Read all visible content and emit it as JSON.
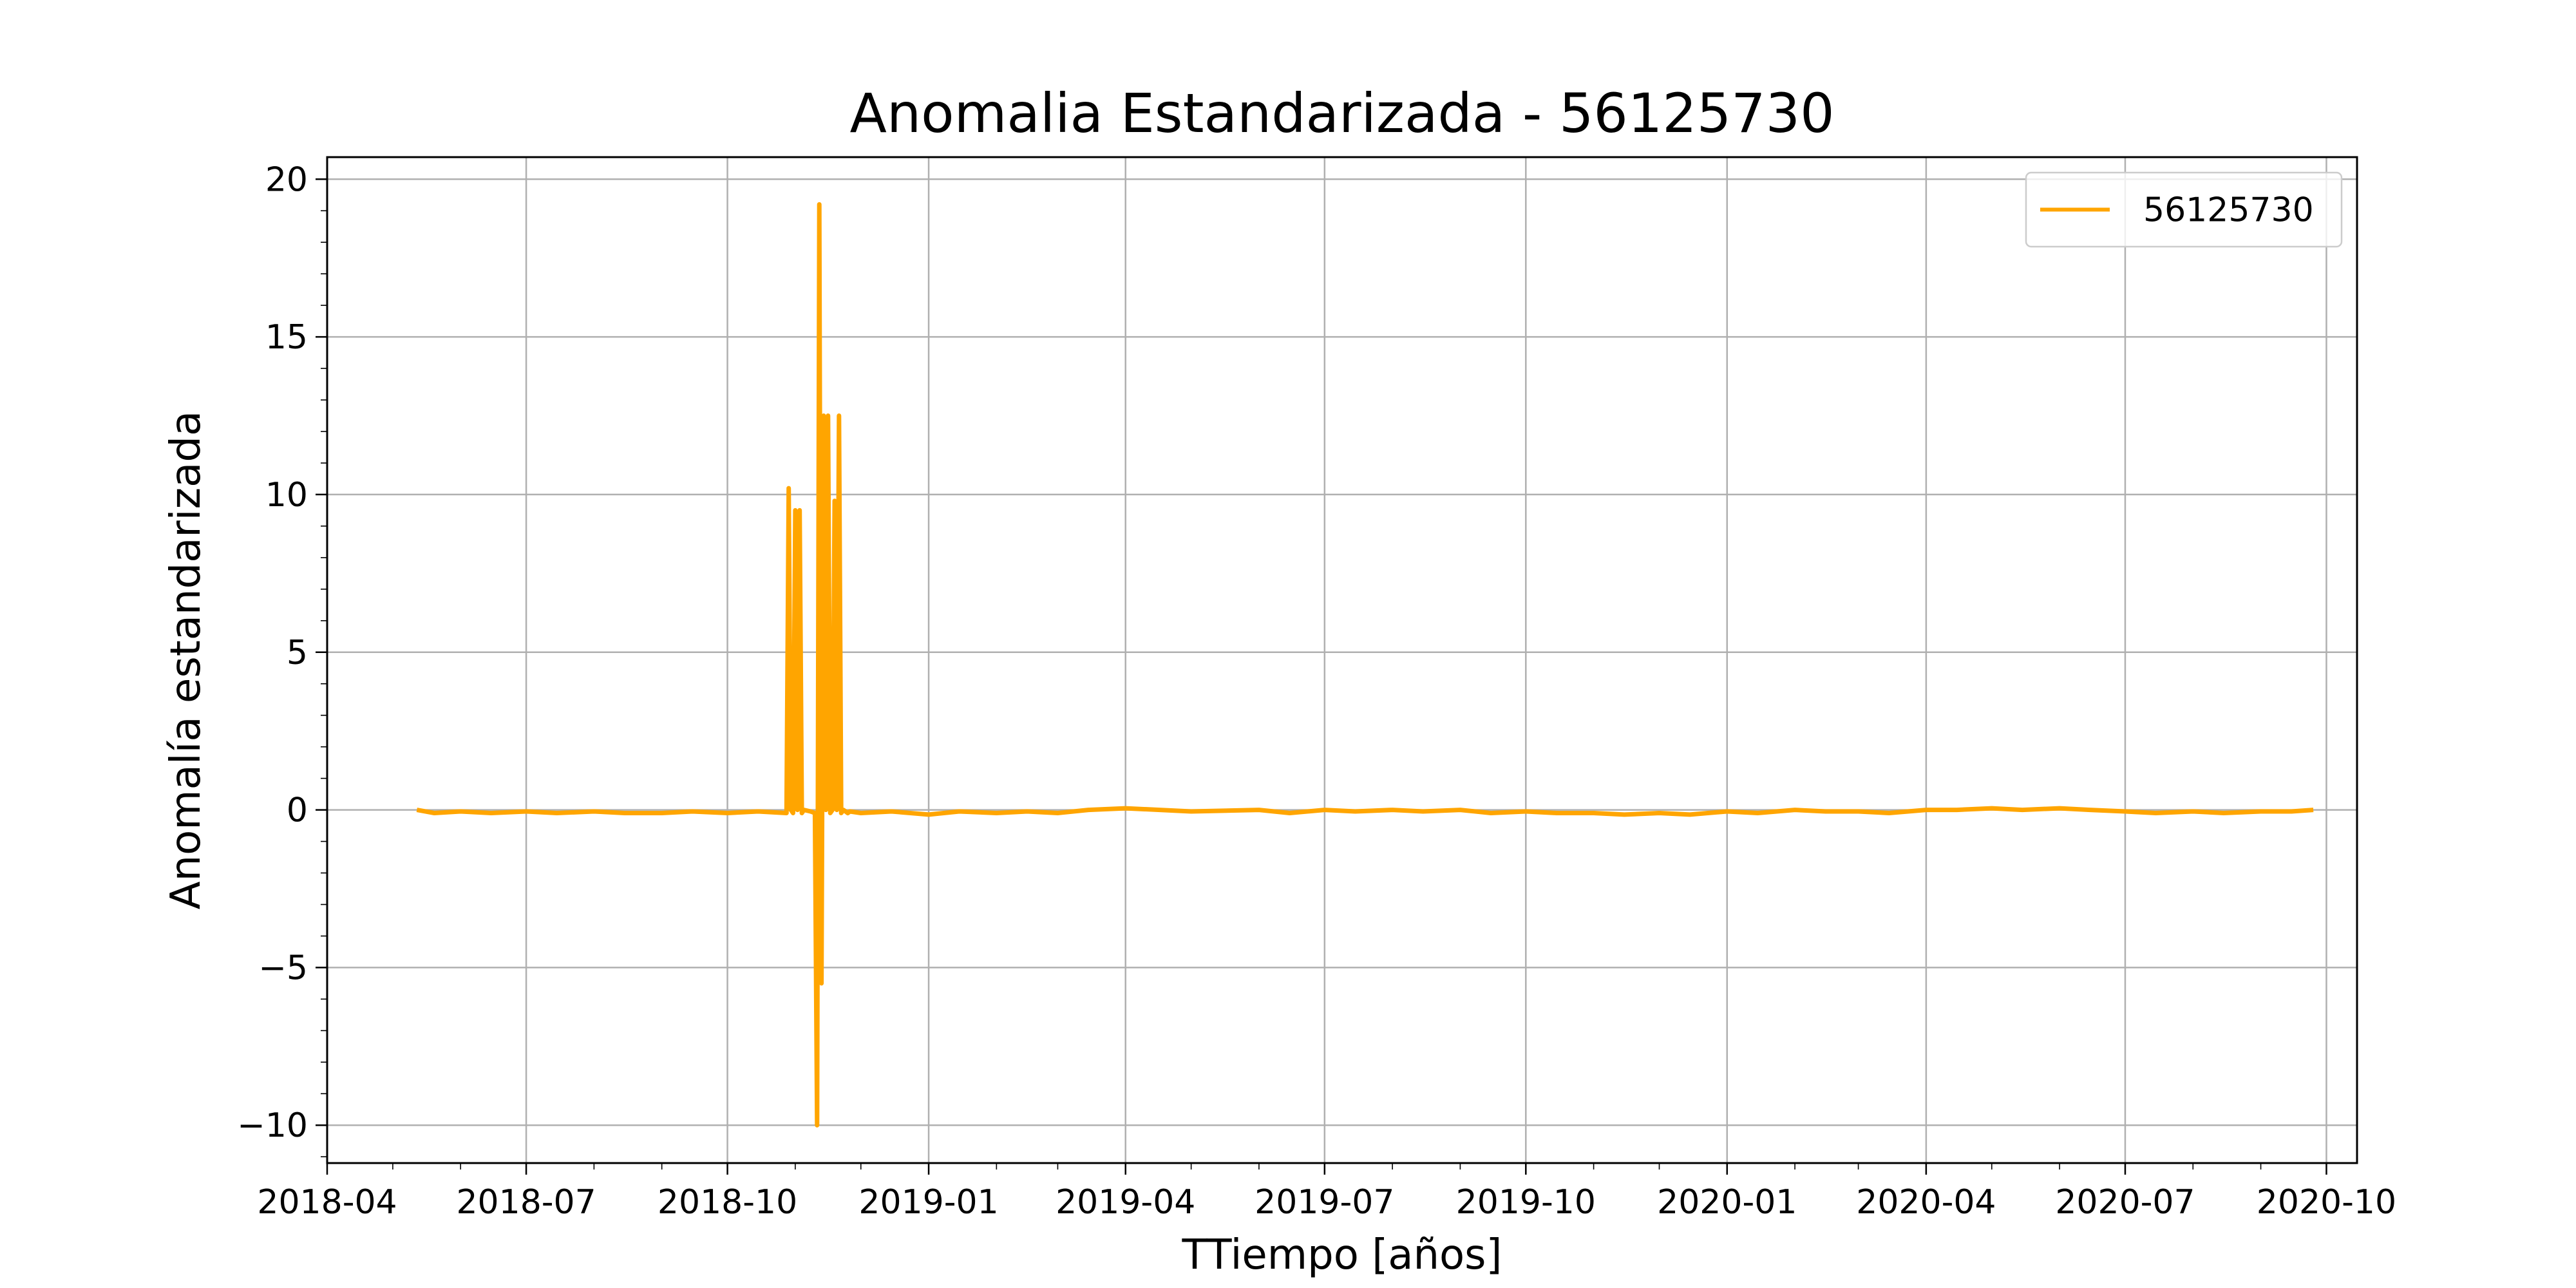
{
  "chart_data": {
    "type": "line",
    "title": "Anomalia Estandarizada - 56125730",
    "xlabel": "TTiempo [años]",
    "ylabel": "Anomalía estandarizada",
    "xlim": [
      "2018-04-01",
      "2020-10-15"
    ],
    "ylim": [
      -11.2,
      20.7
    ],
    "xticks": [
      {
        "date": "2018-04-01",
        "label": "2018-04"
      },
      {
        "date": "2018-07-01",
        "label": "2018-07"
      },
      {
        "date": "2018-10-01",
        "label": "2018-10"
      },
      {
        "date": "2019-01-01",
        "label": "2019-01"
      },
      {
        "date": "2019-04-01",
        "label": "2019-04"
      },
      {
        "date": "2019-07-01",
        "label": "2019-07"
      },
      {
        "date": "2019-10-01",
        "label": "2019-10"
      },
      {
        "date": "2020-01-01",
        "label": "2020-01"
      },
      {
        "date": "2020-04-01",
        "label": "2020-04"
      },
      {
        "date": "2020-07-01",
        "label": "2020-07"
      },
      {
        "date": "2020-10-01",
        "label": "2020-10"
      }
    ],
    "yticks": [
      {
        "value": 20,
        "label": "20"
      },
      {
        "value": 15,
        "label": "15"
      },
      {
        "value": 10,
        "label": "10"
      },
      {
        "value": 5,
        "label": "5"
      },
      {
        "value": 0,
        "label": "0"
      },
      {
        "value": -5,
        "label": "−5"
      },
      {
        "value": -10,
        "label": "−10"
      }
    ],
    "grid": true,
    "legend_position": "top-right",
    "series": [
      {
        "name": "56125730",
        "color": "#FFA500",
        "x": [
          "2018-05-12",
          "2018-05-20",
          "2018-06-01",
          "2018-06-15",
          "2018-07-01",
          "2018-07-15",
          "2018-08-01",
          "2018-08-15",
          "2018-09-01",
          "2018-09-15",
          "2018-10-01",
          "2018-10-15",
          "2018-10-28",
          "2018-10-29",
          "2018-10-30",
          "2018-10-31",
          "2018-11-01",
          "2018-11-02",
          "2018-11-03",
          "2018-11-04",
          "2018-11-05",
          "2018-11-08",
          "2018-11-10",
          "2018-11-11",
          "2018-11-12",
          "2018-11-13",
          "2018-11-14",
          "2018-11-15",
          "2018-11-16",
          "2018-11-17",
          "2018-11-18",
          "2018-11-19",
          "2018-11-20",
          "2018-11-21",
          "2018-11-22",
          "2018-11-23",
          "2018-11-24",
          "2018-11-25",
          "2018-11-26",
          "2018-12-01",
          "2018-12-15",
          "2019-01-01",
          "2019-01-15",
          "2019-02-01",
          "2019-02-15",
          "2019-03-01",
          "2019-03-15",
          "2019-04-01",
          "2019-05-01",
          "2019-06-01",
          "2019-06-15",
          "2019-07-01",
          "2019-07-15",
          "2019-08-01",
          "2019-08-15",
          "2019-09-01",
          "2019-09-15",
          "2019-10-01",
          "2019-10-15",
          "2019-11-01",
          "2019-11-15",
          "2019-12-01",
          "2019-12-15",
          "2020-01-01",
          "2020-01-15",
          "2020-02-01",
          "2020-02-15",
          "2020-03-01",
          "2020-03-15",
          "2020-04-01",
          "2020-04-15",
          "2020-05-01",
          "2020-05-15",
          "2020-06-01",
          "2020-06-15",
          "2020-07-01",
          "2020-07-15",
          "2020-08-01",
          "2020-08-15",
          "2020-09-01",
          "2020-09-15",
          "2020-09-25"
        ],
        "y": [
          0.0,
          -0.1,
          -0.05,
          -0.1,
          -0.05,
          -0.1,
          -0.05,
          -0.1,
          -0.1,
          -0.05,
          -0.1,
          -0.05,
          -0.1,
          10.2,
          0.0,
          -0.1,
          9.5,
          0.0,
          9.5,
          -0.1,
          0.0,
          -0.05,
          -0.1,
          -10.0,
          19.2,
          -5.5,
          12.5,
          0.0,
          12.5,
          -0.1,
          0.0,
          9.8,
          0.0,
          12.5,
          -0.1,
          0.0,
          -0.05,
          -0.1,
          -0.05,
          -0.1,
          -0.05,
          -0.15,
          -0.05,
          -0.1,
          -0.05,
          -0.1,
          0.0,
          0.05,
          -0.05,
          0.0,
          -0.1,
          0.0,
          -0.05,
          0.0,
          -0.05,
          0.0,
          -0.1,
          -0.05,
          -0.1,
          -0.1,
          -0.15,
          -0.1,
          -0.15,
          -0.05,
          -0.1,
          0.0,
          -0.05,
          -0.05,
          -0.1,
          0.0,
          0.0,
          0.05,
          0.0,
          0.05,
          0.0,
          -0.05,
          -0.1,
          -0.05,
          -0.1,
          -0.05,
          -0.05,
          0.0
        ]
      }
    ]
  }
}
